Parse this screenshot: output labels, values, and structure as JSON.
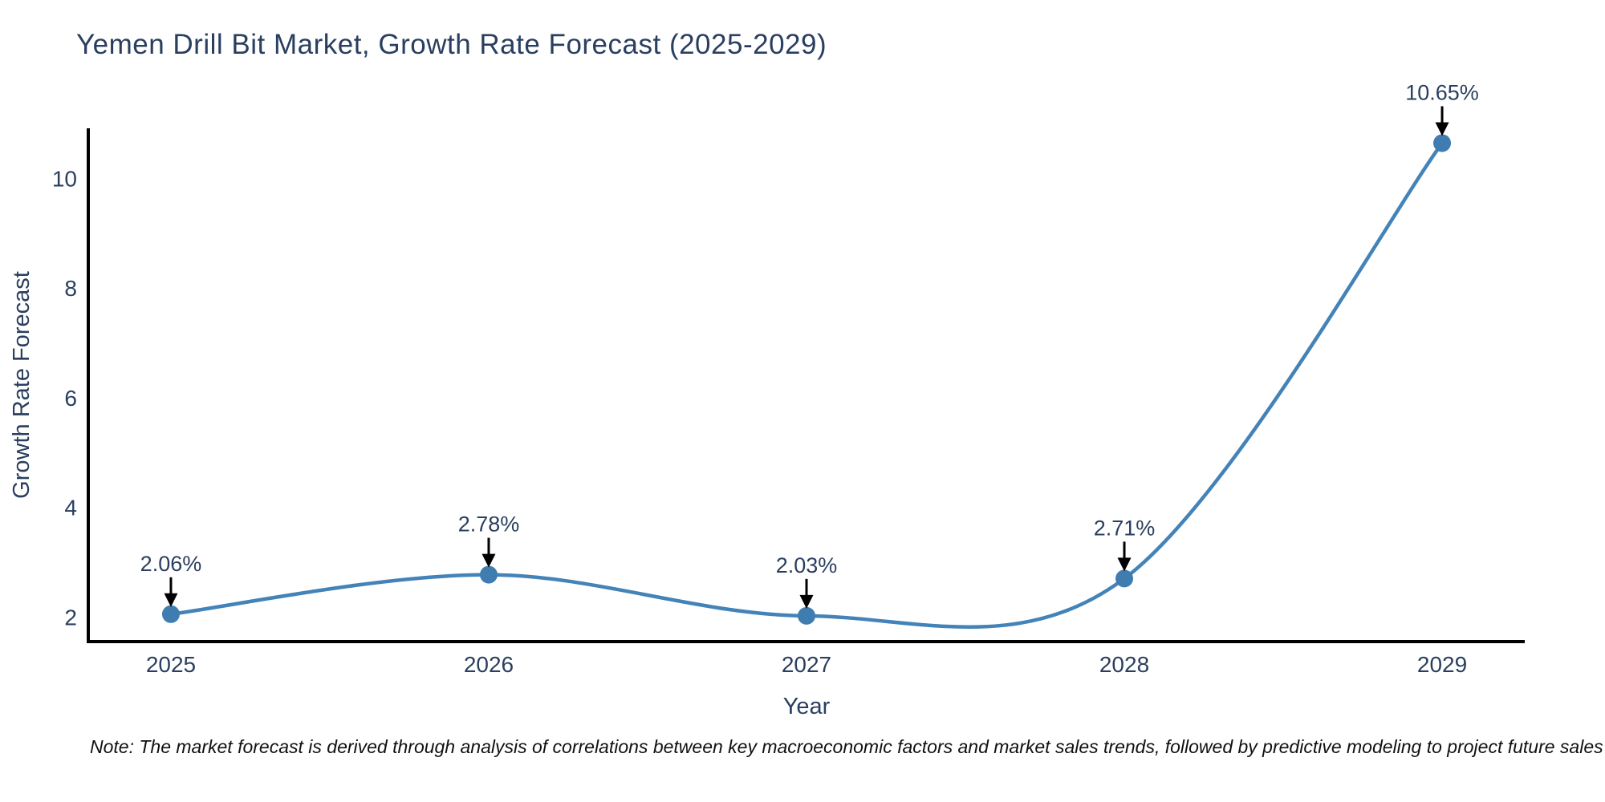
{
  "chart_data": {
    "type": "line",
    "title": "Yemen Drill Bit Market, Growth Rate Forecast (2025-2029)",
    "xlabel": "Year",
    "ylabel": "Growth Rate Forecast",
    "x": [
      2025,
      2026,
      2027,
      2028,
      2029
    ],
    "series": [
      {
        "name": "Growth Rate Forecast",
        "values": [
          2.06,
          2.78,
          2.03,
          2.71,
          10.65
        ]
      }
    ],
    "point_labels": [
      "2.06%",
      "2.78%",
      "2.03%",
      "2.71%",
      "10.65%"
    ],
    "xticks": [
      "2025",
      "2026",
      "2027",
      "2028",
      "2029"
    ],
    "yticks": [
      2,
      4,
      6,
      8,
      10
    ],
    "xlim": [
      2024.74,
      2029.26
    ],
    "ylim": [
      1.56,
      10.92
    ],
    "grid": false,
    "legend_position": "none",
    "line_shape": "spline",
    "colors": {
      "line": "#4383b8",
      "marker": "#3f7cb0",
      "axis": "#000000",
      "tick_text": "#2a3f5f",
      "title_text": "#2a3f5f",
      "annotation_text": "#2a3f5f",
      "arrow": "#000000",
      "background": "#ffffff"
    }
  },
  "note": "Note: The market forecast is derived through analysis of correlations between key macroeconomic factors and market sales trends, followed by predictive modeling to project future sales"
}
